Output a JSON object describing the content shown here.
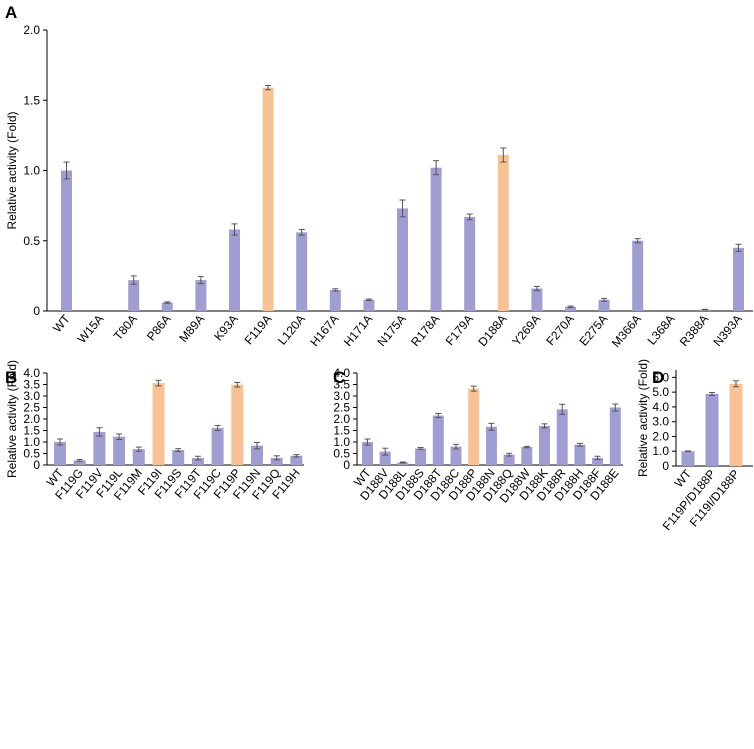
{
  "colors": {
    "normal": "#a09dd3",
    "highlight": "#f8c294",
    "axis": "#000000",
    "error": "#555555"
  },
  "chart_data": [
    {
      "panel": "A",
      "type": "bar",
      "ylabel": "Relative activity (Fold)",
      "ylim": [
        0,
        2.0
      ],
      "yticks": [
        "0",
        "0.5",
        "1.0",
        "1.5",
        "2.0"
      ],
      "ytick_values": [
        0,
        0.5,
        1.0,
        1.5,
        2.0
      ],
      "categories": [
        "WT",
        "W15A",
        "T80A",
        "P86A",
        "M89A",
        "K93A",
        "F119A",
        "L120A",
        "H167A",
        "H171A",
        "N175A",
        "R178A",
        "F179A",
        "D188A",
        "Y269A",
        "F270A",
        "E275A",
        "M366A",
        "L368A",
        "R388A",
        "N393A"
      ],
      "values": [
        1.0,
        0,
        0.22,
        0.06,
        0.22,
        0.58,
        1.59,
        0.56,
        0.15,
        0.08,
        0.73,
        1.02,
        0.67,
        1.11,
        0.16,
        0.03,
        0.08,
        0.5,
        0,
        0.01,
        0.45
      ],
      "errors": [
        0.06,
        0,
        0.03,
        0.005,
        0.025,
        0.04,
        0.015,
        0.02,
        0.008,
        0.005,
        0.06,
        0.05,
        0.02,
        0.05,
        0.015,
        0.005,
        0.01,
        0.015,
        0,
        0.002,
        0.025
      ],
      "highlight": [
        "F119A",
        "D188A"
      ]
    },
    {
      "panel": "B",
      "type": "bar",
      "ylabel": "Relative activity (Fold)",
      "ylim": [
        0,
        4.0
      ],
      "yticks": [
        "0",
        "0.5",
        "1.0",
        "1.5",
        "2.0",
        "2.5",
        "3.0",
        "3.5",
        "4.0"
      ],
      "ytick_values": [
        0,
        0.5,
        1.0,
        1.5,
        2.0,
        2.5,
        3.0,
        3.5,
        4.0
      ],
      "categories": [
        "WT",
        "F119G",
        "F119V",
        "F119L",
        "F119M",
        "F119I",
        "F119S",
        "F119T",
        "F119C",
        "F119P",
        "F119N",
        "F119Q",
        "F119H"
      ],
      "values": [
        1.0,
        0.2,
        1.44,
        1.23,
        0.69,
        3.56,
        0.65,
        0.3,
        1.61,
        3.49,
        0.84,
        0.31,
        0.4
      ],
      "errors": [
        0.13,
        0.04,
        0.18,
        0.12,
        0.09,
        0.12,
        0.06,
        0.08,
        0.11,
        0.1,
        0.14,
        0.09,
        0.05
      ],
      "highlight": [
        "F119I",
        "F119P"
      ]
    },
    {
      "panel": "C",
      "type": "bar",
      "ylabel": "",
      "ylim": [
        0,
        4.0
      ],
      "yticks": [
        "0",
        "0.5",
        "1.0",
        "1.5",
        "2.0",
        "2.5",
        "3.0",
        "3.5",
        "4.0"
      ],
      "ytick_values": [
        0,
        0.5,
        1.0,
        1.5,
        2.0,
        2.5,
        3.0,
        3.5,
        4.0
      ],
      "categories": [
        "WT",
        "D188V",
        "D188L",
        "D188S",
        "D188T",
        "D188C",
        "D188P",
        "D188N",
        "D188Q",
        "D188W",
        "D188K",
        "D188R",
        "D188H",
        "D188F",
        "D188E"
      ],
      "values": [
        1.0,
        0.58,
        0.11,
        0.72,
        2.15,
        0.8,
        3.32,
        1.66,
        0.45,
        0.78,
        1.7,
        2.42,
        0.88,
        0.31,
        2.5
      ],
      "errors": [
        0.13,
        0.15,
        0.02,
        0.04,
        0.09,
        0.1,
        0.11,
        0.15,
        0.06,
        0.03,
        0.09,
        0.22,
        0.06,
        0.07,
        0.15
      ],
      "highlight": [
        "D188P"
      ]
    },
    {
      "panel": "D",
      "type": "bar",
      "ylabel": "Relative activity (Fold)",
      "ylim": [
        0,
        6.5
      ],
      "yticks": [
        "0",
        "1.0",
        "2.0",
        "3.0",
        "4.0",
        "5.0",
        "6.0"
      ],
      "ytick_values": [
        0,
        1.0,
        2.0,
        3.0,
        4.0,
        5.0,
        6.0
      ],
      "categories": [
        "WT",
        "F119P/D188P",
        "F119I/D188P"
      ],
      "values": [
        1.0,
        4.88,
        5.57
      ],
      "errors": [
        0.02,
        0.1,
        0.2
      ],
      "highlight": [
        "F119I/D188P"
      ]
    }
  ]
}
